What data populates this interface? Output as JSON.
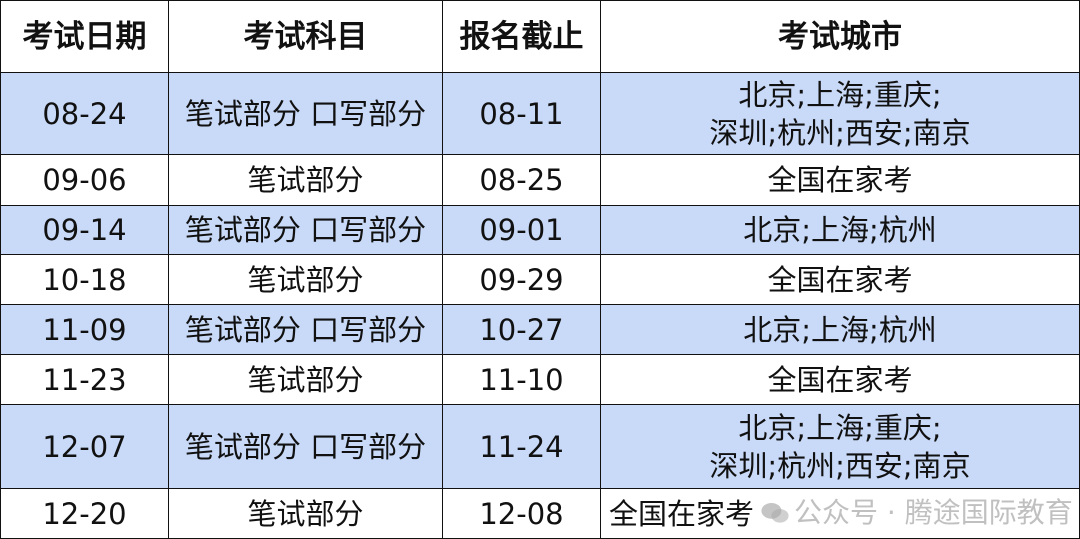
{
  "headers": [
    "考试日期",
    "考试科目",
    "报名截止",
    "考试城市"
  ],
  "rows": [
    {
      "date": "08-24",
      "subject": "笔试部分 口写部分",
      "deadline": "08-11",
      "city_line1": "北京;上海;重庆;",
      "city_line2": "深圳;杭州;西安;南京",
      "highlight": true
    },
    {
      "date": "09-06",
      "subject": "笔试部分",
      "deadline": "08-25",
      "city_line1": "全国在家考",
      "city_line2": "",
      "highlight": false
    },
    {
      "date": "09-14",
      "subject": "笔试部分 口写部分",
      "deadline": "09-01",
      "city_line1": "北京;上海;杭州",
      "city_line2": "",
      "highlight": true
    },
    {
      "date": "10-18",
      "subject": "笔试部分",
      "deadline": "09-29",
      "city_line1": "全国在家考",
      "city_line2": "",
      "highlight": false
    },
    {
      "date": "11-09",
      "subject": "笔试部分 口写部分",
      "deadline": "10-27",
      "city_line1": "北京;上海;杭州",
      "city_line2": "",
      "highlight": true
    },
    {
      "date": "11-23",
      "subject": "笔试部分",
      "deadline": "11-10",
      "city_line1": "全国在家考",
      "city_line2": "",
      "highlight": false
    },
    {
      "date": "12-07",
      "subject": "笔试部分 口写部分",
      "deadline": "11-24",
      "city_line1": "北京;上海;重庆;",
      "city_line2": "深圳;杭州;西安;南京",
      "highlight": true
    },
    {
      "date": "12-20",
      "subject": "笔试部分",
      "deadline": "12-08",
      "city_line1": "全国在家考",
      "city_line2": "",
      "highlight": false
    }
  ],
  "watermark": "公众号 · 腾途国际教育",
  "colors": {
    "highlight": "#c9daf8",
    "border": "#111111"
  }
}
